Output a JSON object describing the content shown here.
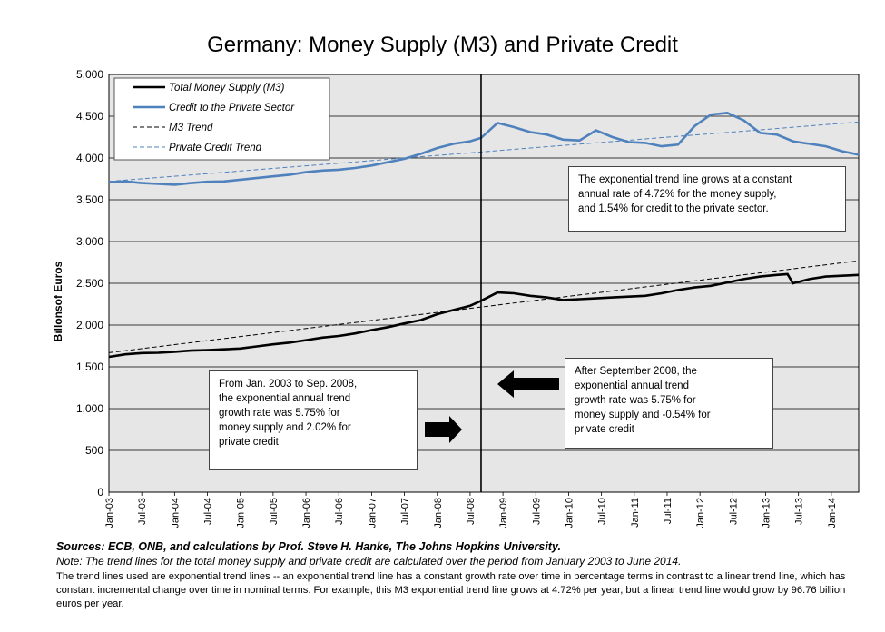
{
  "title": "Germany: Money Supply (M3) and Private Credit",
  "chart_data": {
    "type": "line",
    "ylabel": "Billonsof Euros",
    "ylim": [
      0,
      5000
    ],
    "yticks": [
      0,
      500,
      1000,
      1500,
      2000,
      2500,
      3000,
      3500,
      4000,
      4500,
      5000
    ],
    "ytick_labels": [
      "0",
      "500",
      "1,000",
      "1,500",
      "2,000",
      "2,500",
      "3,000",
      "3,500",
      "4,000",
      "4,500",
      "5,000"
    ],
    "xlim": [
      "2003-01",
      "2014-06"
    ],
    "xtick_labels": [
      "Jan-03",
      "Jul-03",
      "Jan-04",
      "Jul-04",
      "Jan-05",
      "Jul-05",
      "Jan-06",
      "Jul-06",
      "Jan-07",
      "Jul-07",
      "Jan-08",
      "Jul-08",
      "Jan-09",
      "Jul-09",
      "Jan-10",
      "Jul-10",
      "Jan-11",
      "Jul-11",
      "Jan-12",
      "Jul-12",
      "Jan-13",
      "Jul-13",
      "Jan-14"
    ],
    "grid": true,
    "legend_position": "top-left",
    "vertical_marker": "2008-09",
    "series": [
      {
        "name": "Total Money Supply (M3)",
        "color": "#000000",
        "style": "solid",
        "x": [
          "2003-01",
          "2003-04",
          "2003-07",
          "2003-10",
          "2004-01",
          "2004-04",
          "2004-07",
          "2004-10",
          "2005-01",
          "2005-04",
          "2005-07",
          "2005-10",
          "2006-01",
          "2006-04",
          "2006-07",
          "2006-10",
          "2007-01",
          "2007-04",
          "2007-07",
          "2007-10",
          "2008-01",
          "2008-04",
          "2008-07",
          "2008-09",
          "2008-12",
          "2009-03",
          "2009-06",
          "2009-09",
          "2009-12",
          "2010-03",
          "2010-06",
          "2010-09",
          "2010-12",
          "2011-03",
          "2011-06",
          "2011-09",
          "2011-12",
          "2012-03",
          "2012-06",
          "2012-09",
          "2012-12",
          "2013-03",
          "2013-05",
          "2013-06",
          "2013-09",
          "2013-12",
          "2014-03",
          "2014-06"
        ],
        "y": [
          1620,
          1650,
          1665,
          1668,
          1680,
          1695,
          1700,
          1710,
          1720,
          1745,
          1770,
          1790,
          1820,
          1850,
          1870,
          1900,
          1940,
          1975,
          2020,
          2060,
          2130,
          2180,
          2230,
          2290,
          2390,
          2380,
          2350,
          2330,
          2300,
          2310,
          2320,
          2330,
          2340,
          2350,
          2380,
          2420,
          2450,
          2470,
          2510,
          2550,
          2580,
          2600,
          2610,
          2500,
          2550,
          2580,
          2590,
          2600
        ]
      },
      {
        "name": "Credit to the Private Sector",
        "color": "#4F81BD",
        "style": "solid",
        "x": [
          "2003-01",
          "2003-04",
          "2003-07",
          "2003-10",
          "2004-01",
          "2004-04",
          "2004-07",
          "2004-10",
          "2005-01",
          "2005-04",
          "2005-07",
          "2005-10",
          "2006-01",
          "2006-04",
          "2006-07",
          "2006-10",
          "2007-01",
          "2007-04",
          "2007-07",
          "2007-10",
          "2008-01",
          "2008-04",
          "2008-07",
          "2008-09",
          "2008-12",
          "2009-03",
          "2009-06",
          "2009-09",
          "2009-12",
          "2010-03",
          "2010-06",
          "2010-09",
          "2010-12",
          "2011-03",
          "2011-06",
          "2011-09",
          "2011-12",
          "2012-03",
          "2012-06",
          "2012-09",
          "2012-12",
          "2013-03",
          "2013-06",
          "2013-09",
          "2013-12",
          "2014-03",
          "2014-06"
        ],
        "y": [
          3710,
          3720,
          3700,
          3690,
          3680,
          3700,
          3715,
          3720,
          3740,
          3760,
          3780,
          3800,
          3830,
          3850,
          3860,
          3880,
          3910,
          3950,
          3990,
          4050,
          4120,
          4170,
          4200,
          4240,
          4420,
          4370,
          4310,
          4280,
          4220,
          4210,
          4330,
          4250,
          4190,
          4180,
          4140,
          4160,
          4380,
          4520,
          4540,
          4450,
          4300,
          4280,
          4200,
          4170,
          4140,
          4080,
          4040
        ]
      },
      {
        "name": "M3 Trend",
        "color": "#000000",
        "style": "dashed",
        "x": [
          "2003-01",
          "2014-06"
        ],
        "y": [
          1670,
          2770
        ]
      },
      {
        "name": "Private Credit Trend",
        "color": "#4F81BD",
        "style": "dashed",
        "x": [
          "2003-01",
          "2014-06"
        ],
        "y": [
          3720,
          4430
        ]
      }
    ]
  },
  "annotations": {
    "top_right": [
      "The exponential trend line grows at a constant",
      "annual rate of 4.72% for the money supply,",
      "and 1.54% for credit to the private sector."
    ],
    "left": [
      "From Jan. 2003 to Sep. 2008,",
      "the exponential annual trend",
      "growth rate was  5.75% for",
      "money supply and  2.02% for",
      "private credit"
    ],
    "right": [
      "After September 2008, the",
      "exponential annual trend",
      "growth rate was  5.75%  for",
      "money supply and -0.54% for",
      "private credit"
    ]
  },
  "footer": {
    "sources": "Sources: ECB, ONB, and calculations by Prof. Steve H. Hanke, The Johns Hopkins University.",
    "note": "Note: The trend lines for the total money supply and private credit are calculated over the period from January 2003 to  June 2014.",
    "body": "The trend lines used are exponential trend lines -- an exponential trend line has a constant growth rate over time in percentage terms in contrast to a linear trend line, which has constant incremental change over time in nominal terms. For example, this M3 exponential trend line grows at 4.72% per year, but a linear trend line would grow by  96.76  billion euros per year."
  }
}
